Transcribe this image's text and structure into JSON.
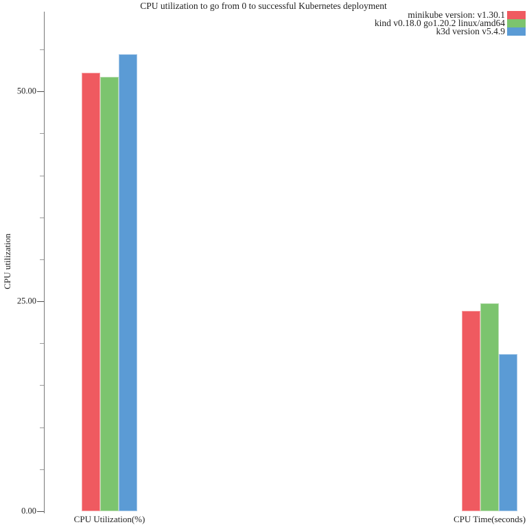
{
  "chart_data": {
    "type": "bar",
    "title": "CPU utilization to go from 0 to successful Kubernetes deployment",
    "xlabel": "",
    "ylabel": "CPU utilization",
    "categories": [
      "CPU Utilization(%)",
      "CPU Time(seconds)"
    ],
    "series": [
      {
        "name": "minikube version: v1.30.1",
        "color": "#EF5A60",
        "values": [
          52.2,
          23.9
        ]
      },
      {
        "name": "kind v0.18.0 go1.20.2 linux/amd64",
        "color": "#7CC46E",
        "values": [
          51.7,
          24.8
        ]
      },
      {
        "name": "k3d version v5.4.9",
        "color": "#5B9BD5",
        "values": [
          54.4,
          18.7
        ]
      }
    ],
    "ylim": [
      0,
      59.5
    ],
    "yticks": [
      {
        "value": 0,
        "label": "0.00"
      },
      {
        "value": 25,
        "label": "25.00"
      },
      {
        "value": 50,
        "label": "50.00"
      }
    ],
    "minor_tick_interval": 5,
    "legend_position": "top-right",
    "grid": false
  }
}
